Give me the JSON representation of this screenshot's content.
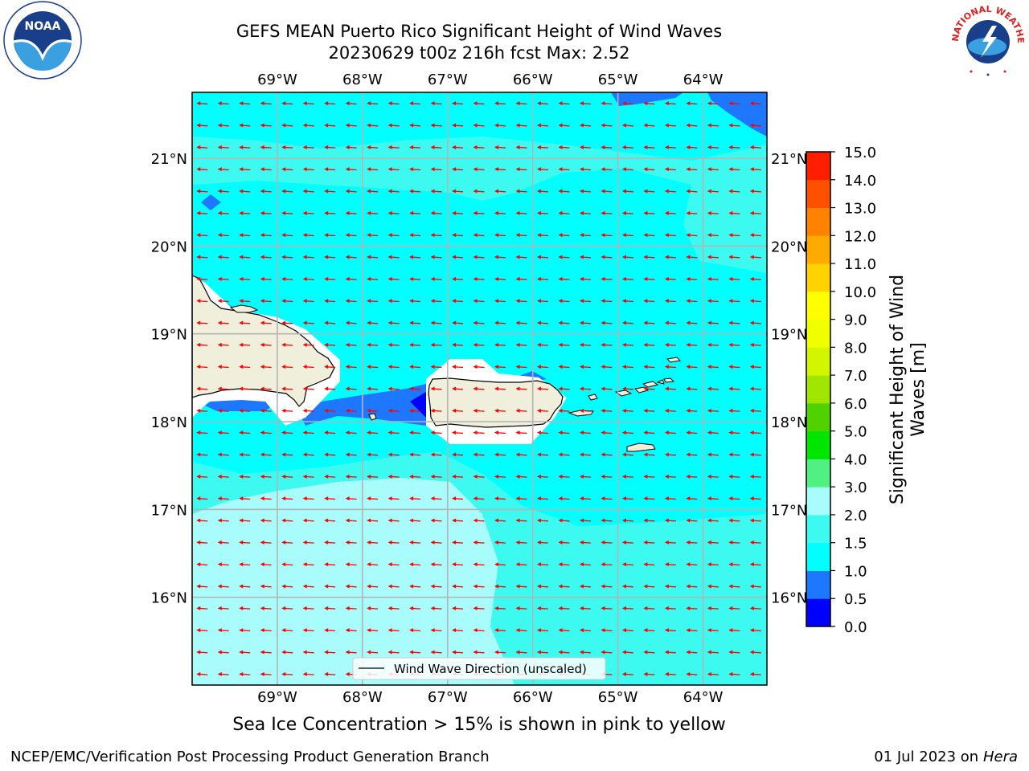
{
  "title": {
    "line1": "GEFS MEAN Puerto Rico Significant Height of Wind Waves",
    "line2": "20230629 t00z 216h fcst   Max: 2.52"
  },
  "map": {
    "lon_range": [
      -70.0,
      -63.25
    ],
    "lat_range": [
      15.0,
      21.75
    ],
    "lon_ticks": [
      -69,
      -68,
      -67,
      -66,
      -65,
      -64
    ],
    "lon_tick_labels": [
      "69°W",
      "68°W",
      "67°W",
      "66°W",
      "65°W",
      "64°W"
    ],
    "lat_ticks": [
      16,
      17,
      18,
      19,
      20,
      21
    ],
    "lat_tick_labels": [
      "16°N",
      "17°N",
      "18°N",
      "19°N",
      "20°N",
      "21°N"
    ],
    "ocean_color": "#00ffff",
    "land_color": "#efefdc",
    "arrow_color": "#ff0000",
    "arrow_direction_deg_from_east": 180,
    "legend_label": "Wind Wave Direction (unscaled)"
  },
  "colorbar": {
    "label": "Significant Height of Wind Waves [m]",
    "label_line1": "Significant Height of Wind",
    "label_line2": "Waves [m]",
    "levels": [
      0.0,
      0.5,
      1.0,
      1.5,
      2.0,
      3.0,
      4.0,
      5.0,
      6.0,
      7.0,
      8.0,
      9.0,
      10.0,
      11.0,
      12.0,
      13.0,
      14.0,
      15.0
    ],
    "tick_labels": [
      "0.0",
      "0.5",
      "1.0",
      "1.5",
      "2.0",
      "3.0",
      "4.0",
      "5.0",
      "6.0",
      "7.0",
      "8.0",
      "9.0",
      "10.0",
      "11.0",
      "12.0",
      "13.0",
      "14.0",
      "15.0"
    ],
    "colors": [
      "#0000ff",
      "#1e78ff",
      "#00ffff",
      "#3cfaf0",
      "#a8fcfc",
      "#50f082",
      "#00e600",
      "#50d200",
      "#a0e600",
      "#d2f500",
      "#f0ff00",
      "#ffff00",
      "#ffd200",
      "#ffaa00",
      "#ff8200",
      "#ff5000",
      "#ff1e00"
    ]
  },
  "caption": "Sea Ice Concentration > 15% is shown in pink to yellow",
  "footer": {
    "left": "NCEP/EMC/Verification Post Processing Product Generation Branch",
    "right_date": "01 Jul 2023 on ",
    "right_host": "Hera"
  },
  "logos": {
    "left": "noaa-logo",
    "left_text": "NOAA",
    "right": "nws-logo",
    "right_text": "NATIONAL WEATHER SERVICE"
  }
}
